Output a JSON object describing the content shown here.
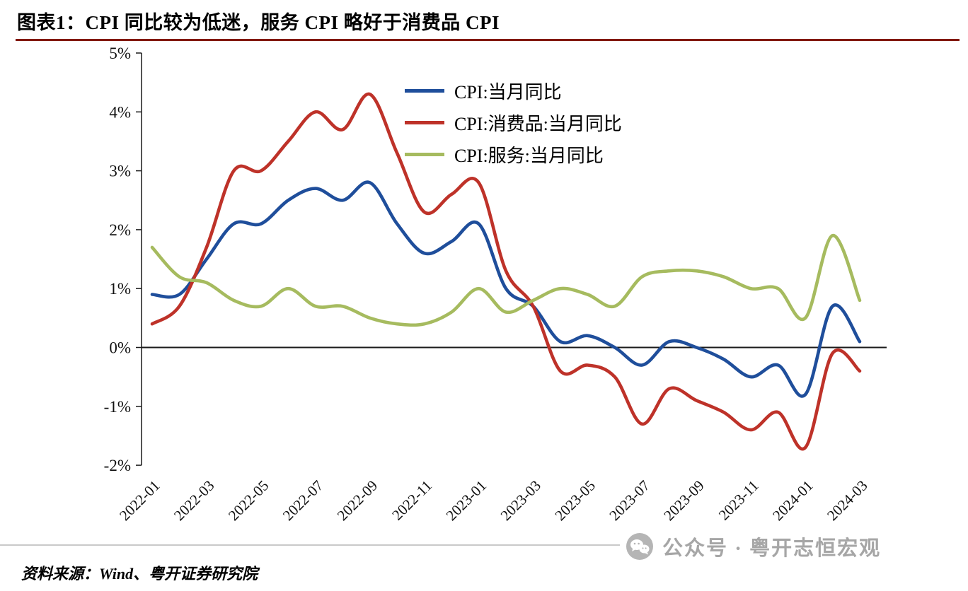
{
  "title": "图表1：CPI 同比较为低迷，服务 CPI 略好于消费品 CPI",
  "source_note": "资料来源：Wind、粤开证券研究院",
  "watermark": {
    "text": "公众号 · 粤开志恒宏观",
    "icon": "wechat-icon"
  },
  "colors": {
    "title_rule": "#82190F",
    "axis": "#1a1a1a",
    "zero_line": "#1a1a1a",
    "tick_text": "#111111",
    "divider_gray": "#c9c9c9",
    "watermark_gray": "#a6a6a6",
    "watermark_icon": "#b5b5b5"
  },
  "chart_data": {
    "type": "line",
    "title": "图表1：CPI 同比较为低迷，服务 CPI 略好于消费品 CPI",
    "unit": "%",
    "grid": false,
    "zero_line": true,
    "legend_position": "top-center",
    "ylim": [
      -2,
      5
    ],
    "y_tick_values": [
      5,
      4,
      3,
      2,
      1,
      0,
      -1,
      -2
    ],
    "y_tick_labels": [
      "5%",
      "4%",
      "3%",
      "2%",
      "1%",
      "0%",
      "-1%",
      "-2%"
    ],
    "x": [
      "2022-01",
      "2022-02",
      "2022-03",
      "2022-04",
      "2022-05",
      "2022-06",
      "2022-07",
      "2022-08",
      "2022-09",
      "2022-10",
      "2022-11",
      "2022-12",
      "2023-01",
      "2023-02",
      "2023-03",
      "2023-04",
      "2023-05",
      "2023-06",
      "2023-07",
      "2023-08",
      "2023-09",
      "2023-10",
      "2023-11",
      "2023-12",
      "2024-01",
      "2024-02",
      "2024-03"
    ],
    "x_tick_labels": [
      "2022-01",
      "2022-03",
      "2022-05",
      "2022-07",
      "2022-09",
      "2022-11",
      "2023-01",
      "2023-03",
      "2023-05",
      "2023-07",
      "2023-09",
      "2023-11",
      "2024-01",
      "2024-03"
    ],
    "series": [
      {
        "id": "cpi",
        "name": "CPI:当月同比",
        "color": "#1F4E9B",
        "values": [
          0.9,
          0.9,
          1.5,
          2.1,
          2.1,
          2.5,
          2.7,
          2.5,
          2.8,
          2.1,
          1.6,
          1.8,
          2.1,
          1.0,
          0.7,
          0.1,
          0.2,
          0.0,
          -0.3,
          0.1,
          0.0,
          -0.2,
          -0.5,
          -0.3,
          -0.8,
          0.7,
          0.1
        ]
      },
      {
        "id": "consumer-goods",
        "name": "CPI:消费品:当月同比",
        "color": "#BE3229",
        "values": [
          0.4,
          0.7,
          1.7,
          3.0,
          3.0,
          3.5,
          4.0,
          3.7,
          4.3,
          3.3,
          2.3,
          2.6,
          2.8,
          1.3,
          0.7,
          -0.4,
          -0.3,
          -0.5,
          -1.3,
          -0.7,
          -0.9,
          -1.1,
          -1.4,
          -1.1,
          -1.7,
          -0.1,
          -0.4
        ]
      },
      {
        "id": "services",
        "name": "CPI:服务:当月同比",
        "color": "#A6BB5F",
        "values": [
          1.7,
          1.2,
          1.1,
          0.8,
          0.7,
          1.0,
          0.7,
          0.7,
          0.5,
          0.4,
          0.4,
          0.6,
          1.0,
          0.6,
          0.8,
          1.0,
          0.9,
          0.7,
          1.2,
          1.3,
          1.3,
          1.2,
          1.0,
          1.0,
          0.5,
          1.9,
          0.8
        ]
      }
    ]
  }
}
